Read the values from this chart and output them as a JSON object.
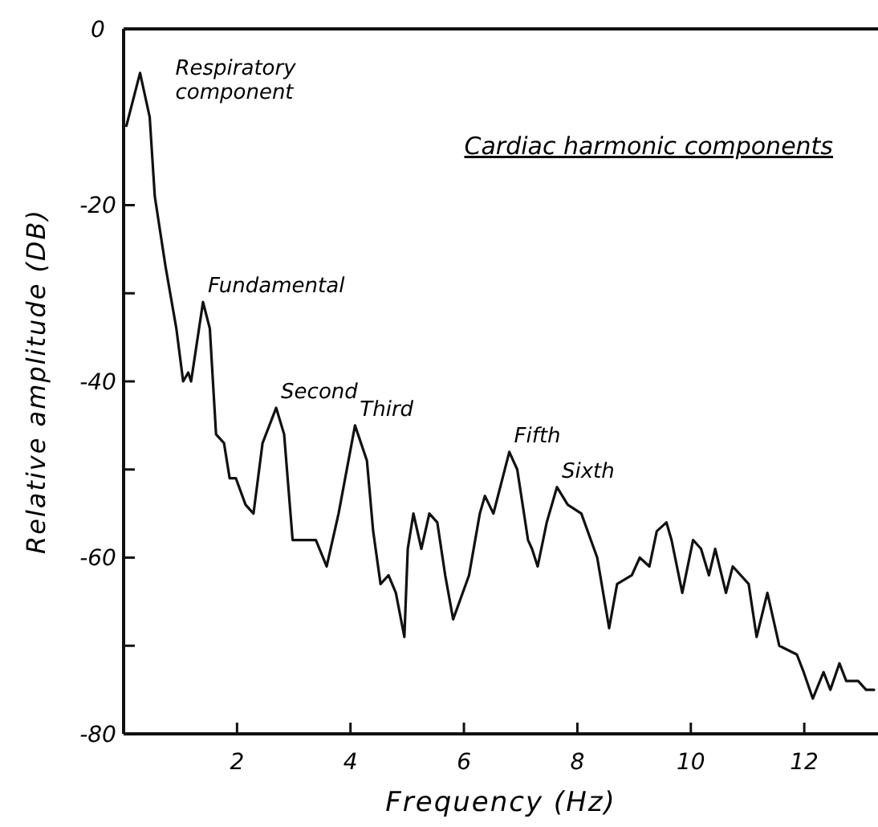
{
  "chart_data": {
    "type": "line",
    "xlabel": "Frequency (Hz)",
    "ylabel": "Relative amplitude (DB)",
    "xlim": [
      0,
      13.3
    ],
    "xticks": [
      2,
      4,
      6,
      8,
      10,
      12
    ],
    "ylim": [
      -80,
      0
    ],
    "yticks": [
      0,
      -20,
      {
        "value": -30,
        "label": null
      },
      -40,
      {
        "value": -50,
        "label": null
      },
      -60,
      {
        "value": -70,
        "label": null
      },
      -80
    ],
    "grid": false,
    "marker": "none",
    "line_style": "solid",
    "series": [
      {
        "color": "#111111",
        "x": [
          0.05,
          0.29,
          0.46,
          0.55,
          0.74,
          0.93,
          1.05,
          1.14,
          1.19,
          1.4,
          1.52,
          1.63,
          1.77,
          1.87,
          1.98,
          2.15,
          2.29,
          2.45,
          2.69,
          2.83,
          2.98,
          3.09,
          3.39,
          3.58,
          3.79,
          4.08,
          4.29,
          4.4,
          4.53,
          4.67,
          4.8,
          4.95,
          5.01,
          5.11,
          5.25,
          5.39,
          5.53,
          5.67,
          5.81,
          6.09,
          6.28,
          6.37,
          6.52,
          6.8,
          6.94,
          7.13,
          7.2,
          7.3,
          7.46,
          7.64,
          7.83,
          8.07,
          8.35,
          8.56,
          8.7,
          8.96,
          9.1,
          9.27,
          9.4,
          9.57,
          9.66,
          9.85,
          10.04,
          10.18,
          10.32,
          10.43,
          10.62,
          10.74,
          11.02,
          11.16,
          11.35,
          11.56,
          11.87,
          11.99,
          12.15,
          12.34,
          12.46,
          12.62,
          12.74,
          12.95,
          13.09,
          13.23
        ],
        "values": [
          -11,
          -5,
          -10,
          -19,
          -27,
          -34,
          -40,
          -39,
          -40,
          -31,
          -34,
          -46,
          -47,
          -51,
          -51,
          -54,
          -55,
          -47,
          -43,
          -46,
          -58,
          -58,
          -58,
          -61,
          -55,
          -45,
          -49,
          -57,
          -63,
          -62,
          -64,
          -69,
          -59,
          -55,
          -59,
          -55,
          -56,
          -62,
          -67,
          -62,
          -55,
          -53,
          -55,
          -48,
          -50,
          -58,
          -59,
          -61,
          -56,
          -52,
          -54,
          -55,
          -60,
          -68,
          -63,
          -62,
          -60,
          -61,
          -57,
          -56,
          -58,
          -64,
          -58,
          -59,
          -62,
          -59,
          -64,
          -61,
          -63,
          -69,
          -64,
          -70,
          -71,
          -73,
          -76,
          -73,
          -75,
          -72,
          -74,
          -74,
          -75,
          -75
        ]
      }
    ],
    "annotations": [
      {
        "text": "Respiratory component",
        "x": 0.29,
        "y": -5
      },
      {
        "text": "Fundamental",
        "x": 1.4,
        "y": -31
      },
      {
        "text": "Second",
        "x": 2.69,
        "y": -43
      },
      {
        "text": "Third",
        "x": 4.08,
        "y": -45
      },
      {
        "text": "Fifth",
        "x": 6.8,
        "y": -48
      },
      {
        "text": "Sixth",
        "x": 7.64,
        "y": -52
      },
      "Cardiac harmonic components"
    ]
  }
}
